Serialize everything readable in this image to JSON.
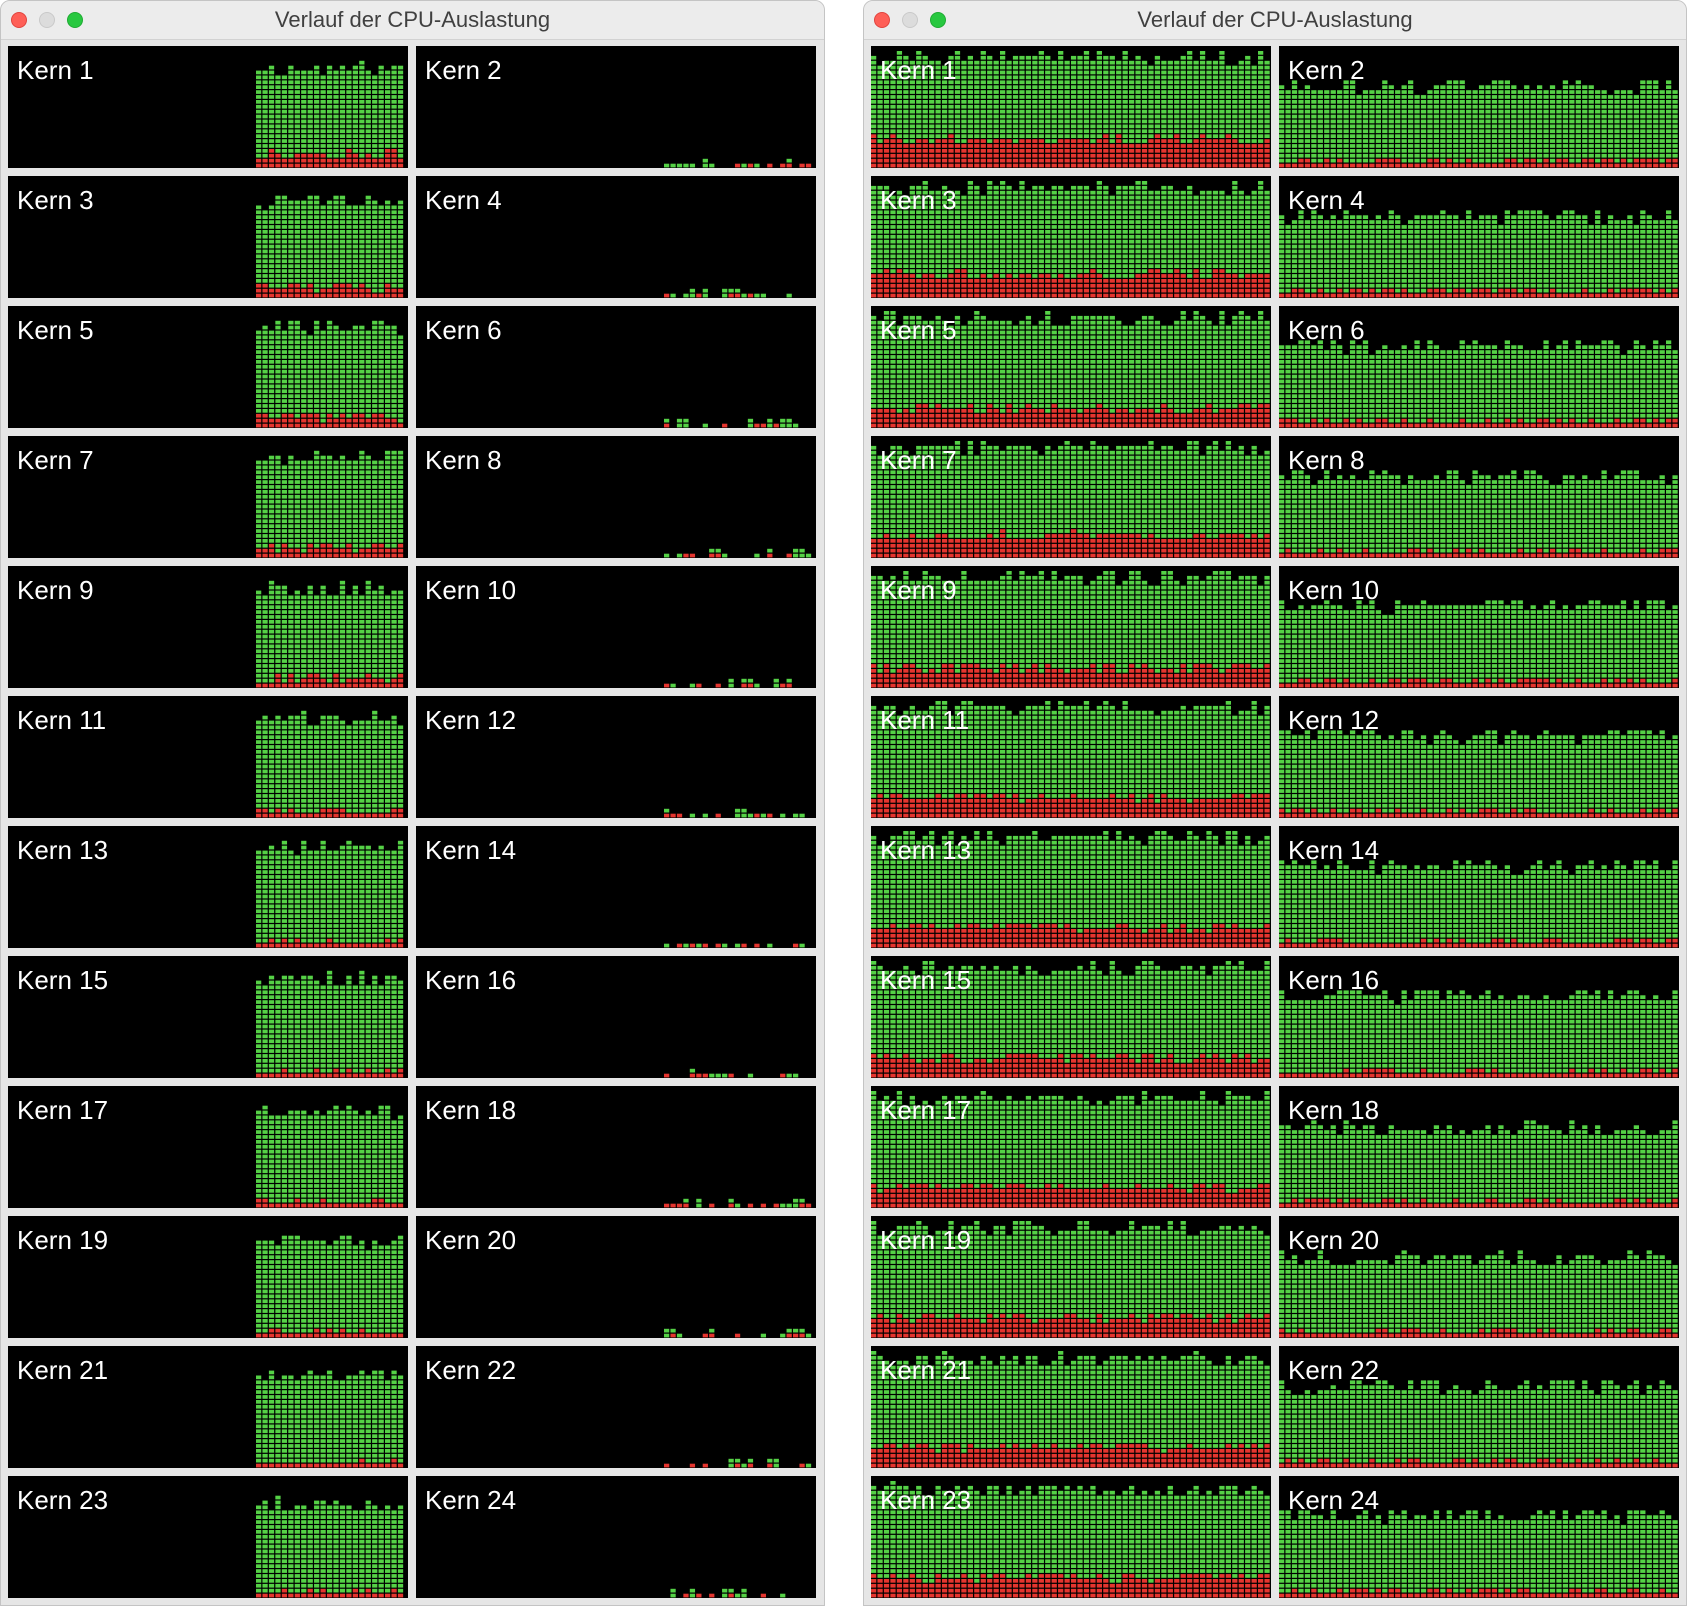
{
  "colors": {
    "user": "#55d146",
    "system": "#e5352f",
    "background": "#000000",
    "grid_line": "#1d1d1d"
  },
  "windows": [
    {
      "title": "Verlauf der CPU-Auslastung",
      "cores": [
        {
          "label": "Kern 1",
          "type": "busy",
          "total": 0.85,
          "system": 0.12
        },
        {
          "label": "Kern 2",
          "type": "idle",
          "total": 0.06,
          "system": 0.04
        },
        {
          "label": "Kern 3",
          "type": "busy",
          "total": 0.83,
          "system": 0.1
        },
        {
          "label": "Kern 4",
          "type": "idle",
          "total": 0.06,
          "system": 0.04
        },
        {
          "label": "Kern 5",
          "type": "busy",
          "total": 0.86,
          "system": 0.1
        },
        {
          "label": "Kern 6",
          "type": "idle",
          "total": 0.07,
          "system": 0.04
        },
        {
          "label": "Kern 7",
          "type": "busy",
          "total": 0.86,
          "system": 0.09
        },
        {
          "label": "Kern 8",
          "type": "idle",
          "total": 0.06,
          "system": 0.03
        },
        {
          "label": "Kern 9",
          "type": "busy",
          "total": 0.84,
          "system": 0.08
        },
        {
          "label": "Kern 10",
          "type": "idle",
          "total": 0.06,
          "system": 0.03
        },
        {
          "label": "Kern 11",
          "type": "busy",
          "total": 0.85,
          "system": 0.06
        },
        {
          "label": "Kern 12",
          "type": "idle",
          "total": 0.07,
          "system": 0.03
        },
        {
          "label": "Kern 13",
          "type": "busy",
          "total": 0.85,
          "system": 0.05
        },
        {
          "label": "Kern 14",
          "type": "idle",
          "total": 0.07,
          "system": 0.03
        },
        {
          "label": "Kern 15",
          "type": "busy",
          "total": 0.84,
          "system": 0.05
        },
        {
          "label": "Kern 16",
          "type": "idle",
          "total": 0.06,
          "system": 0.02
        },
        {
          "label": "Kern 17",
          "type": "busy",
          "total": 0.83,
          "system": 0.04
        },
        {
          "label": "Kern 18",
          "type": "idle",
          "total": 0.05,
          "system": 0.02
        },
        {
          "label": "Kern 19",
          "type": "busy",
          "total": 0.83,
          "system": 0.04
        },
        {
          "label": "Kern 20",
          "type": "idle",
          "total": 0.03,
          "system": 0.0
        },
        {
          "label": "Kern 21",
          "type": "busy",
          "total": 0.79,
          "system": 0.04
        },
        {
          "label": "Kern 22",
          "type": "idle",
          "total": 0.04,
          "system": 0.0
        },
        {
          "label": "Kern 23",
          "type": "busy",
          "total": 0.8,
          "system": 0.04
        },
        {
          "label": "Kern 24",
          "type": "idle",
          "total": 0.04,
          "system": 0.0
        }
      ]
    },
    {
      "title": "Verlauf der CPU-Auslastung",
      "cores": [
        {
          "label": "Kern 1",
          "type": "full",
          "total": 0.95,
          "system": 0.24
        },
        {
          "label": "Kern 2",
          "type": "full",
          "total": 0.7,
          "system": 0.06
        },
        {
          "label": "Kern 3",
          "type": "full",
          "total": 0.94,
          "system": 0.2
        },
        {
          "label": "Kern 4",
          "type": "full",
          "total": 0.7,
          "system": 0.06
        },
        {
          "label": "Kern 5",
          "type": "full",
          "total": 0.94,
          "system": 0.17
        },
        {
          "label": "Kern 6",
          "type": "full",
          "total": 0.7,
          "system": 0.06
        },
        {
          "label": "Kern 7",
          "type": "full",
          "total": 0.94,
          "system": 0.19
        },
        {
          "label": "Kern 8",
          "type": "full",
          "total": 0.7,
          "system": 0.05
        },
        {
          "label": "Kern 9",
          "type": "full",
          "total": 0.94,
          "system": 0.17
        },
        {
          "label": "Kern 10",
          "type": "full",
          "total": 0.7,
          "system": 0.05
        },
        {
          "label": "Kern 11",
          "type": "full",
          "total": 0.94,
          "system": 0.18
        },
        {
          "label": "Kern 12",
          "type": "full",
          "total": 0.7,
          "system": 0.05
        },
        {
          "label": "Kern 13",
          "type": "full",
          "total": 0.94,
          "system": 0.18
        },
        {
          "label": "Kern 14",
          "type": "full",
          "total": 0.7,
          "system": 0.05
        },
        {
          "label": "Kern 15",
          "type": "full",
          "total": 0.94,
          "system": 0.17
        },
        {
          "label": "Kern 16",
          "type": "full",
          "total": 0.7,
          "system": 0.05
        },
        {
          "label": "Kern 17",
          "type": "full",
          "total": 0.94,
          "system": 0.18
        },
        {
          "label": "Kern 18",
          "type": "full",
          "total": 0.68,
          "system": 0.05
        },
        {
          "label": "Kern 19",
          "type": "full",
          "total": 0.94,
          "system": 0.18
        },
        {
          "label": "Kern 20",
          "type": "full",
          "total": 0.68,
          "system": 0.05
        },
        {
          "label": "Kern 21",
          "type": "full",
          "total": 0.93,
          "system": 0.18
        },
        {
          "label": "Kern 22",
          "type": "full",
          "total": 0.7,
          "system": 0.05
        },
        {
          "label": "Kern 23",
          "type": "full",
          "total": 0.92,
          "system": 0.18
        },
        {
          "label": "Kern 24",
          "type": "full",
          "total": 0.7,
          "system": 0.05
        }
      ]
    }
  ]
}
